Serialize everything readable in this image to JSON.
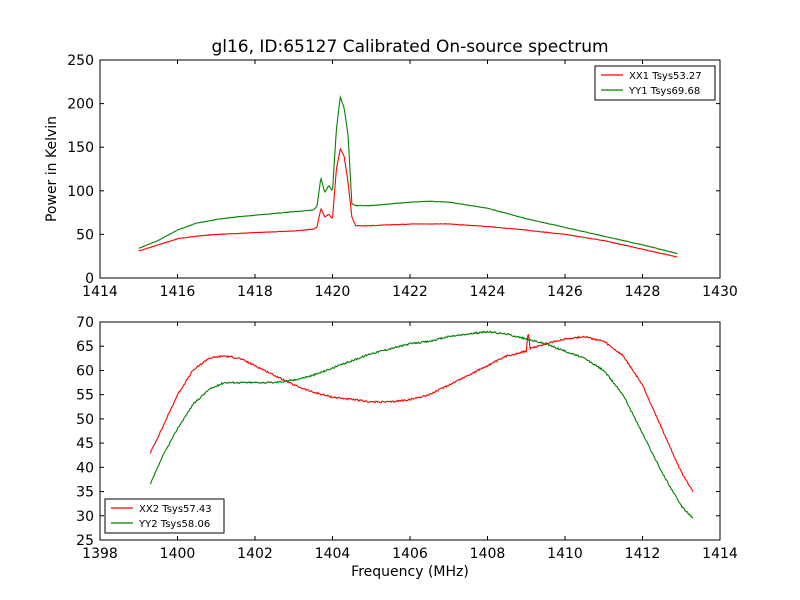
{
  "chart_data": [
    {
      "type": "line",
      "title": "gl16, ID:65127 Calibrated On-source spectrum",
      "xlabel": "",
      "ylabel": "Power in Kelvin",
      "xlim": [
        1414,
        1430
      ],
      "ylim": [
        0,
        250
      ],
      "xticks": [
        1414,
        1416,
        1418,
        1420,
        1422,
        1424,
        1426,
        1428,
        1430
      ],
      "yticks": [
        0,
        50,
        100,
        150,
        200,
        250
      ],
      "legend_position": "top-right",
      "series": [
        {
          "name": "XX1 Tsys53.27",
          "color": "#ff0000",
          "x": [
            1415.0,
            1415.5,
            1416.0,
            1416.5,
            1417.0,
            1417.5,
            1418.0,
            1418.5,
            1419.0,
            1419.5,
            1419.6,
            1419.7,
            1419.8,
            1419.9,
            1420.0,
            1420.1,
            1420.2,
            1420.3,
            1420.4,
            1420.5,
            1420.6,
            1421.0,
            1422.0,
            1422.5,
            1423.0,
            1424.0,
            1425.0,
            1426.0,
            1427.0,
            1428.0,
            1428.9
          ],
          "y": [
            31,
            38,
            45,
            48,
            50,
            51,
            52,
            53,
            54,
            56,
            58,
            80,
            70,
            73,
            68,
            125,
            148,
            140,
            110,
            70,
            60,
            60,
            62,
            62,
            62,
            59,
            55,
            50,
            43,
            33,
            24
          ]
        },
        {
          "name": "YY1 Tsys69.68",
          "color": "#008000",
          "x": [
            1415.0,
            1415.5,
            1416.0,
            1416.5,
            1417.0,
            1417.5,
            1418.0,
            1418.5,
            1419.0,
            1419.5,
            1419.6,
            1419.7,
            1419.8,
            1419.9,
            1420.0,
            1420.1,
            1420.2,
            1420.3,
            1420.4,
            1420.5,
            1420.6,
            1421.0,
            1422.0,
            1422.5,
            1423.0,
            1424.0,
            1425.0,
            1426.0,
            1427.0,
            1428.0,
            1428.9
          ],
          "y": [
            34,
            43,
            55,
            63,
            67,
            70,
            72,
            74,
            76,
            78,
            82,
            115,
            98,
            106,
            100,
            170,
            208,
            195,
            165,
            85,
            83,
            83,
            87,
            88,
            87,
            80,
            68,
            58,
            48,
            38,
            28
          ]
        }
      ]
    },
    {
      "type": "line",
      "title": "",
      "xlabel": "Frequency (MHz)",
      "ylabel": "",
      "xlim": [
        1398,
        1414
      ],
      "ylim": [
        25,
        70
      ],
      "xticks": [
        1398,
        1400,
        1402,
        1404,
        1406,
        1408,
        1410,
        1412,
        1414
      ],
      "yticks": [
        25,
        30,
        35,
        40,
        45,
        50,
        55,
        60,
        65,
        70
      ],
      "legend_position": "bottom-left",
      "series": [
        {
          "name": "XX2 Tsys57.43",
          "color": "#ff0000",
          "x": [
            1399.3,
            1399.6,
            1400.0,
            1400.4,
            1400.8,
            1401.2,
            1401.6,
            1402.0,
            1402.5,
            1403.0,
            1403.5,
            1404.0,
            1404.5,
            1405.0,
            1405.5,
            1406.0,
            1406.5,
            1407.0,
            1407.5,
            1408.0,
            1408.5,
            1409.0,
            1409.05,
            1409.1,
            1409.5,
            1410.0,
            1410.5,
            1411.0,
            1411.5,
            1412.0,
            1412.5,
            1413.0,
            1413.3
          ],
          "y": [
            43,
            48,
            55,
            60,
            62.5,
            63,
            62.5,
            61,
            59,
            57,
            55.5,
            54.5,
            54,
            53.5,
            53.5,
            54,
            55,
            57,
            59,
            61,
            63,
            64,
            68,
            64.5,
            65.5,
            66.5,
            67,
            66,
            63,
            57,
            48,
            39,
            35
          ]
        },
        {
          "name": "YY2 Tsys58.06",
          "color": "#008000",
          "x": [
            1399.3,
            1399.6,
            1400.0,
            1400.4,
            1400.8,
            1401.2,
            1401.6,
            1402.0,
            1402.5,
            1403.0,
            1403.5,
            1404.0,
            1404.5,
            1405.0,
            1405.5,
            1406.0,
            1406.5,
            1407.0,
            1407.5,
            1408.0,
            1408.5,
            1409.0,
            1409.5,
            1410.0,
            1410.5,
            1411.0,
            1411.5,
            1412.0,
            1412.5,
            1413.0,
            1413.3
          ],
          "y": [
            36.5,
            42,
            48,
            53,
            56,
            57.5,
            57.5,
            57.5,
            57.5,
            58,
            59,
            60.5,
            62,
            63.5,
            64.5,
            65.5,
            66,
            67,
            67.5,
            68,
            67.5,
            66.5,
            65.5,
            64,
            62.5,
            60,
            55,
            47,
            39,
            32,
            29.5
          ]
        }
      ]
    }
  ]
}
